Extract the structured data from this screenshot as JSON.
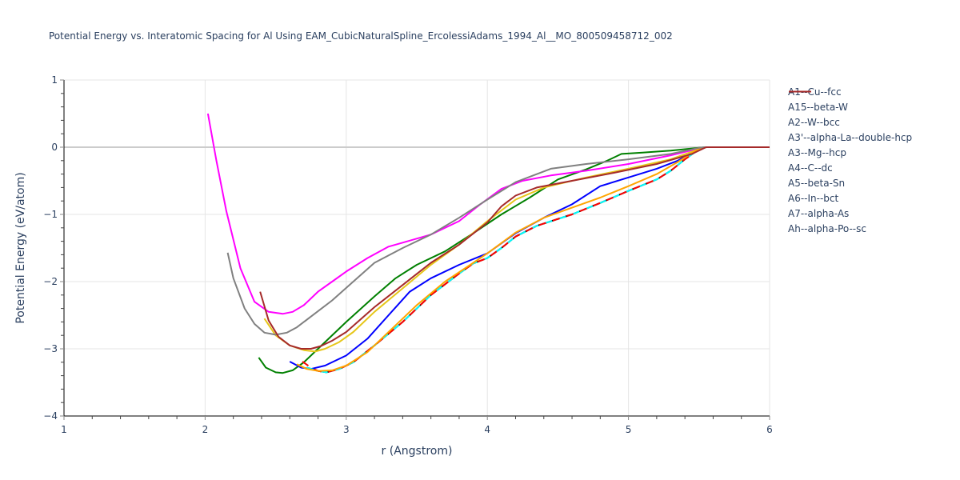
{
  "chart_data": {
    "type": "line",
    "title": "Potential Energy vs. Interatomic Spacing for Al Using EAM_CubicNaturalSpline_ErcolessiAdams_1994_Al__MO_800509458712_002",
    "xlabel": "r (Angstrom)",
    "ylabel": "Potential Energy (eV/atom)",
    "xlim": [
      1,
      6
    ],
    "ylim": [
      -4,
      1
    ],
    "x_ticks": [
      "1",
      "2",
      "3",
      "4",
      "5",
      "6"
    ],
    "y_ticks": [
      "1",
      "0",
      "−1",
      "−2",
      "−3",
      "−4"
    ],
    "grid": true,
    "legend_position": "right",
    "series": [
      {
        "name": "A1--Cu--fcc",
        "color": "#000000",
        "dash": "solid",
        "x": [
          2.72,
          2.8,
          2.86,
          2.95,
          3.05,
          3.2,
          3.4,
          3.6,
          3.8,
          3.9,
          4.0,
          4.1,
          4.2,
          4.35,
          4.6,
          4.8,
          5.0,
          5.2,
          5.3,
          5.4,
          5.5,
          5.55,
          6.0
        ],
        "y": [
          -3.28,
          -3.33,
          -3.35,
          -3.3,
          -3.2,
          -2.95,
          -2.6,
          -2.2,
          -1.88,
          -1.73,
          -1.65,
          -1.5,
          -1.33,
          -1.17,
          -1.0,
          -0.83,
          -0.65,
          -0.48,
          -0.35,
          -0.18,
          -0.03,
          0.0,
          0.0
        ]
      },
      {
        "name": "A15--beta-W",
        "color": "#008000",
        "dash": "solid",
        "x": [
          2.38,
          2.43,
          2.5,
          2.55,
          2.62,
          2.7,
          2.8,
          3.0,
          3.2,
          3.35,
          3.5,
          3.7,
          3.9,
          4.1,
          4.3,
          4.5,
          4.7,
          4.85,
          4.95,
          5.1,
          5.3,
          5.5,
          5.55,
          6.0
        ],
        "y": [
          -3.13,
          -3.28,
          -3.35,
          -3.36,
          -3.32,
          -3.2,
          -3.0,
          -2.6,
          -2.22,
          -1.95,
          -1.75,
          -1.55,
          -1.28,
          -1.0,
          -0.75,
          -0.48,
          -0.33,
          -0.2,
          -0.1,
          -0.08,
          -0.05,
          -0.01,
          0.0,
          0.0
        ]
      },
      {
        "name": "A2--W--bcc",
        "color": "#0000ff",
        "dash": "solid",
        "x": [
          2.6,
          2.68,
          2.75,
          2.85,
          3.0,
          3.15,
          3.3,
          3.45,
          3.6,
          3.8,
          4.0,
          4.2,
          4.4,
          4.6,
          4.8,
          5.0,
          5.2,
          5.35,
          5.5,
          5.55,
          6.0
        ],
        "y": [
          -3.19,
          -3.28,
          -3.3,
          -3.25,
          -3.1,
          -2.85,
          -2.5,
          -2.15,
          -1.95,
          -1.75,
          -1.58,
          -1.28,
          -1.05,
          -0.85,
          -0.58,
          -0.45,
          -0.32,
          -0.2,
          -0.03,
          0.0,
          0.0
        ]
      },
      {
        "name": "A3'--alpha-La--double-hcp",
        "color": "#00ffff",
        "dash": "dashdot",
        "x": [
          2.72,
          2.8,
          2.86,
          2.95,
          3.05,
          3.2,
          3.4,
          3.6,
          3.8,
          3.9,
          4.0,
          4.1,
          4.2,
          4.35,
          4.6,
          4.8,
          5.0,
          5.2,
          5.3,
          5.4,
          5.5,
          5.55,
          6.0
        ],
        "y": [
          -3.28,
          -3.33,
          -3.35,
          -3.3,
          -3.2,
          -2.95,
          -2.6,
          -2.2,
          -1.88,
          -1.73,
          -1.65,
          -1.5,
          -1.33,
          -1.17,
          -1.0,
          -0.83,
          -0.65,
          -0.48,
          -0.35,
          -0.18,
          -0.03,
          0.0,
          0.0
        ]
      },
      {
        "name": "A3--Mg--hcp",
        "color": "#ff0000",
        "dash": "dash",
        "x": [
          2.69,
          2.75,
          2.8,
          2.86,
          2.95,
          3.05,
          3.2,
          3.4,
          3.6,
          3.8,
          3.9,
          4.0,
          4.1,
          4.2,
          4.35,
          4.6,
          4.8,
          5.0,
          5.2,
          5.3,
          5.4,
          5.5,
          5.55,
          6.0
        ],
        "y": [
          -3.19,
          -3.28,
          -3.33,
          -3.35,
          -3.3,
          -3.2,
          -2.95,
          -2.6,
          -2.2,
          -1.88,
          -1.73,
          -1.65,
          -1.5,
          -1.33,
          -1.17,
          -1.0,
          -0.83,
          -0.65,
          -0.48,
          -0.35,
          -0.18,
          -0.03,
          0.0,
          0.0
        ]
      },
      {
        "name": "A4--C--dc",
        "color": "#ff00ff",
        "dash": "solid",
        "x": [
          2.02,
          2.08,
          2.15,
          2.25,
          2.35,
          2.45,
          2.55,
          2.62,
          2.7,
          2.8,
          2.9,
          3.0,
          3.15,
          3.3,
          3.4,
          3.6,
          3.8,
          3.95,
          4.1,
          4.25,
          4.45,
          4.7,
          5.0,
          5.3,
          5.5,
          5.55,
          6.0
        ],
        "y": [
          0.5,
          -0.2,
          -0.95,
          -1.8,
          -2.3,
          -2.45,
          -2.48,
          -2.45,
          -2.35,
          -2.15,
          -2.0,
          -1.85,
          -1.65,
          -1.48,
          -1.42,
          -1.3,
          -1.1,
          -0.85,
          -0.62,
          -0.5,
          -0.42,
          -0.35,
          -0.25,
          -0.12,
          -0.02,
          0.0,
          0.0
        ]
      },
      {
        "name": "A5--beta-Sn",
        "color": "#e6c619",
        "dash": "solid",
        "x": [
          2.42,
          2.5,
          2.6,
          2.7,
          2.78,
          2.85,
          2.95,
          3.05,
          3.2,
          3.4,
          3.6,
          3.8,
          4.0,
          4.2,
          4.4,
          4.7,
          5.0,
          5.3,
          5.5,
          5.55,
          6.0
        ],
        "y": [
          -2.55,
          -2.8,
          -2.95,
          -3.02,
          -3.04,
          -3.0,
          -2.9,
          -2.75,
          -2.45,
          -2.1,
          -1.75,
          -1.45,
          -1.1,
          -0.78,
          -0.6,
          -0.45,
          -0.32,
          -0.18,
          -0.03,
          0.0,
          0.0
        ]
      },
      {
        "name": "A6--In--bct",
        "color": "#ffa500",
        "dash": "solid",
        "x": [
          2.65,
          2.72,
          2.8,
          2.9,
          3.0,
          3.15,
          3.3,
          3.5,
          3.7,
          3.9,
          4.0,
          4.2,
          4.4,
          4.6,
          4.8,
          5.0,
          5.2,
          5.35,
          5.5,
          5.55,
          6.0
        ],
        "y": [
          -3.23,
          -3.3,
          -3.33,
          -3.32,
          -3.25,
          -3.05,
          -2.75,
          -2.35,
          -2.0,
          -1.72,
          -1.58,
          -1.27,
          -1.05,
          -0.9,
          -0.75,
          -0.58,
          -0.4,
          -0.22,
          -0.02,
          0.0,
          0.0
        ]
      },
      {
        "name": "A7--alpha-As",
        "color": "#808080",
        "dash": "solid",
        "x": [
          2.16,
          2.2,
          2.28,
          2.35,
          2.42,
          2.5,
          2.58,
          2.65,
          2.75,
          2.9,
          3.05,
          3.2,
          3.4,
          3.6,
          3.8,
          4.0,
          4.2,
          4.45,
          4.7,
          5.0,
          5.3,
          5.5,
          5.55,
          6.0
        ],
        "y": [
          -1.57,
          -1.95,
          -2.4,
          -2.63,
          -2.76,
          -2.79,
          -2.76,
          -2.68,
          -2.52,
          -2.28,
          -2.0,
          -1.72,
          -1.5,
          -1.3,
          -1.05,
          -0.78,
          -0.52,
          -0.32,
          -0.25,
          -0.18,
          -0.1,
          -0.01,
          0.0,
          0.0
        ]
      },
      {
        "name": "Ah--alpha-Po--sc",
        "color": "#a52a2a",
        "dash": "solid",
        "x": [
          2.39,
          2.45,
          2.52,
          2.6,
          2.68,
          2.75,
          2.82,
          2.9,
          3.0,
          3.2,
          3.4,
          3.6,
          3.8,
          4.0,
          4.1,
          4.2,
          4.35,
          4.6,
          4.9,
          5.2,
          5.45,
          5.55,
          6.0
        ],
        "y": [
          -2.15,
          -2.58,
          -2.82,
          -2.95,
          -3.0,
          -3.0,
          -2.96,
          -2.88,
          -2.75,
          -2.38,
          -2.05,
          -1.72,
          -1.45,
          -1.12,
          -0.88,
          -0.72,
          -0.6,
          -0.5,
          -0.38,
          -0.25,
          -0.1,
          0.0,
          0.0
        ]
      }
    ]
  }
}
